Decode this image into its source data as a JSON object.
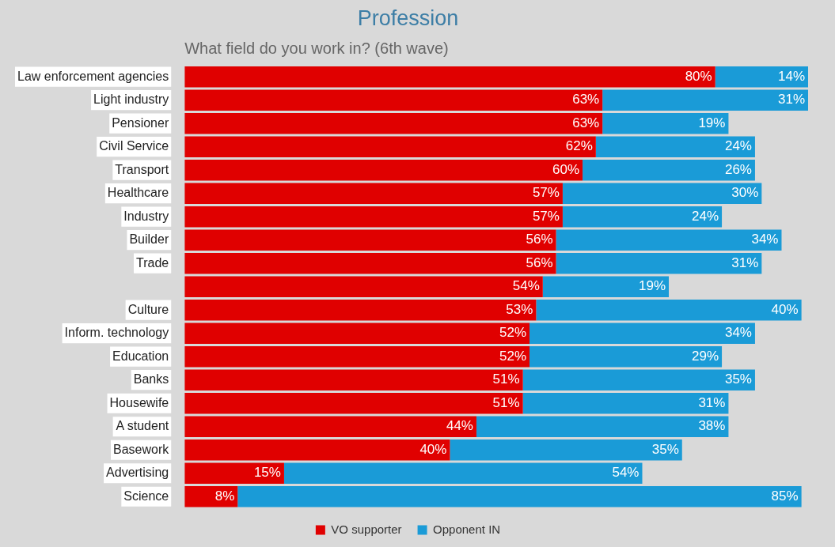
{
  "chart_data": {
    "type": "bar",
    "orientation": "horizontal",
    "stacked": true,
    "legend": "bottom",
    "title": "Profession",
    "subtitle": "What field do you work in? (6th wave)",
    "categories": [
      "Law enforcement agencies",
      "Light industry",
      "Pensioner",
      "Civil Service",
      "Transport",
      "Healthcare",
      "Industry",
      "Builder",
      "Trade",
      null,
      "Culture",
      "Inform. technology",
      "Education",
      "Banks",
      "Housewife",
      "A student",
      "Basework",
      "Advertising",
      "Science"
    ],
    "series": [
      {
        "name": "VO supporter",
        "color": "#e00000",
        "values": [
          80,
          63,
          63,
          62,
          60,
          57,
          57,
          56,
          56,
          54,
          53,
          52,
          52,
          51,
          51,
          44,
          40,
          15,
          8
        ],
        "value_labels": [
          "80%",
          "63%",
          "63%",
          "62%",
          "60%",
          "57%",
          "57%",
          "56%",
          "56%",
          "54%",
          "53%",
          "52%",
          "52%",
          "51%",
          "51%",
          "44%",
          "40%",
          "15%",
          "8%"
        ]
      },
      {
        "name": "Opponent IN",
        "color": "#1a9bd7",
        "values": [
          14,
          31,
          19,
          24,
          26,
          30,
          24,
          34,
          31,
          19,
          40,
          34,
          29,
          35,
          31,
          38,
          35,
          54,
          85
        ],
        "value_labels": [
          "14%",
          "31%",
          "19%",
          "24%",
          "26%",
          "30%",
          "24%",
          "34%",
          "31%",
          "19%",
          "40%",
          "34%",
          "29%",
          "35%",
          "31%",
          "38%",
          "35%",
          "54%",
          "85%"
        ]
      }
    ]
  }
}
